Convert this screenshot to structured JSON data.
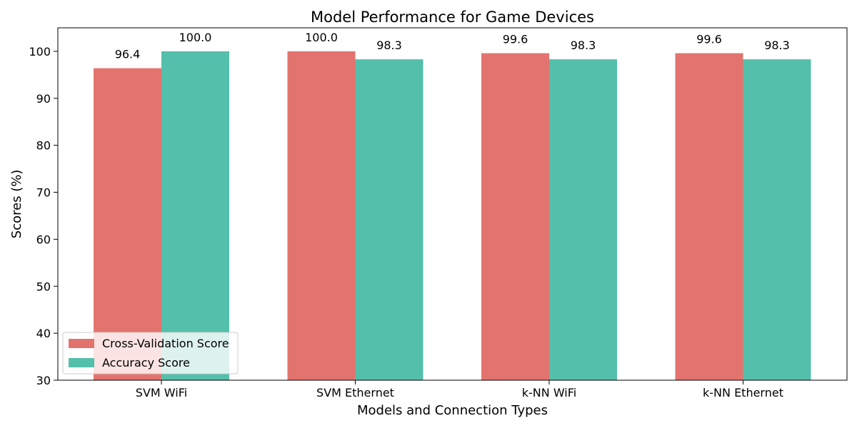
{
  "chart_data": {
    "type": "bar",
    "title": "Model Performance for Game Devices",
    "xlabel": "Models and Connection Types",
    "ylabel": "Scores (%)",
    "categories": [
      "SVM WiFi",
      "SVM Ethernet",
      "k-NN WiFi",
      "k-NN Ethernet"
    ],
    "series": [
      {
        "name": "Cross-Validation Score",
        "values": [
          96.4,
          100.0,
          99.6,
          99.6
        ],
        "labels": [
          "96.4",
          "100.0",
          "99.6",
          "99.6"
        ],
        "color": "#e3736e"
      },
      {
        "name": "Accuracy Score",
        "values": [
          100.0,
          98.3,
          98.3,
          98.3
        ],
        "labels": [
          "100.0",
          "98.3",
          "98.3",
          "98.3"
        ],
        "color": "#54bfab"
      }
    ],
    "ylim": [
      30,
      105
    ],
    "yticks": [
      30,
      40,
      50,
      60,
      70,
      80,
      90,
      100
    ],
    "ytick_labels": [
      "30",
      "40",
      "50",
      "60",
      "70",
      "80",
      "90",
      "100"
    ],
    "grid": false,
    "legend_position": "lower-left"
  }
}
